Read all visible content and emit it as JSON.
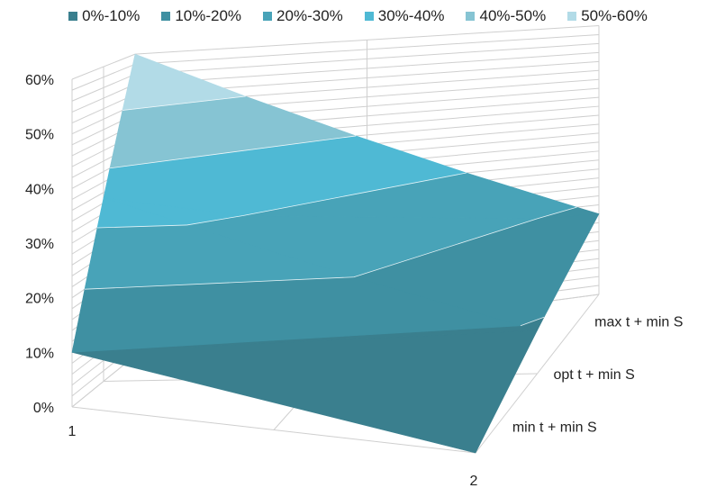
{
  "chart_data": {
    "type": "surface",
    "title": "",
    "x_categories": [
      "1",
      "2"
    ],
    "depth_categories": [
      "min t + min S",
      "opt t + min S",
      "max t + min S"
    ],
    "z_axis": {
      "min": 0,
      "max": 60,
      "step": 10,
      "tick_labels": [
        "0%",
        "10%",
        "20%",
        "30%",
        "40%",
        "50%",
        "60%"
      ]
    },
    "values": [
      {
        "x": "1",
        "depth": "min t + min S",
        "z": 10
      },
      {
        "x": "1",
        "depth": "opt t + min S",
        "z": 35
      },
      {
        "x": "1",
        "depth": "max t + min S",
        "z": 60
      },
      {
        "x": "2",
        "depth": "min t + min S",
        "z": 0
      },
      {
        "x": "2",
        "depth": "opt t + min S",
        "z": 9
      },
      {
        "x": "2",
        "depth": "max t + min S",
        "z": 18
      }
    ],
    "bands": [
      {
        "label": "0%-10%",
        "color": "#3a7f8e"
      },
      {
        "label": "10%-20%",
        "color": "#3f90a2"
      },
      {
        "label": "20%-30%",
        "color": "#48a3b8"
      },
      {
        "label": "30%-40%",
        "color": "#4fb9d4"
      },
      {
        "label": "40%-50%",
        "color": "#86c4d3"
      },
      {
        "label": "50%-60%",
        "color": "#b2dbe7"
      }
    ],
    "legend_position": "top",
    "grid": true
  }
}
